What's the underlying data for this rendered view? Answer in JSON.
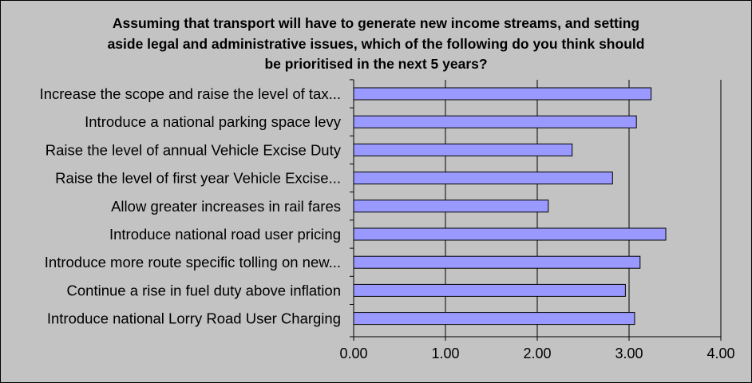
{
  "chart_data": {
    "type": "bar",
    "orientation": "horizontal",
    "title": [
      "Assuming that transport will have to generate new income streams, and setting",
      "aside legal and administrative issues, which of the following do you think should",
      "be prioritised in the next 5 years?"
    ],
    "categories": [
      "Increase the scope and raise the level of tax...",
      "Introduce a national parking space levy",
      "Raise the level of annual Vehicle Excise Duty",
      "Raise the level of first year Vehicle Excise...",
      "Allow greater increases in rail fares",
      "Introduce national road user pricing",
      "Introduce more route specific tolling on new...",
      "Continue a rise in fuel duty above inflation",
      "Introduce national Lorry Road User Charging"
    ],
    "values": [
      3.24,
      3.08,
      2.38,
      2.82,
      2.12,
      3.4,
      3.12,
      2.96,
      3.06
    ],
    "xlim": [
      0,
      4
    ],
    "x_ticks": [
      "0.00",
      "1.00",
      "2.00",
      "3.00",
      "4.00"
    ],
    "x_tick_values": [
      0,
      1,
      2,
      3,
      4
    ],
    "bar_color": "#9999ff",
    "background_color": "#c3c3c3",
    "grid": "vertical"
  }
}
